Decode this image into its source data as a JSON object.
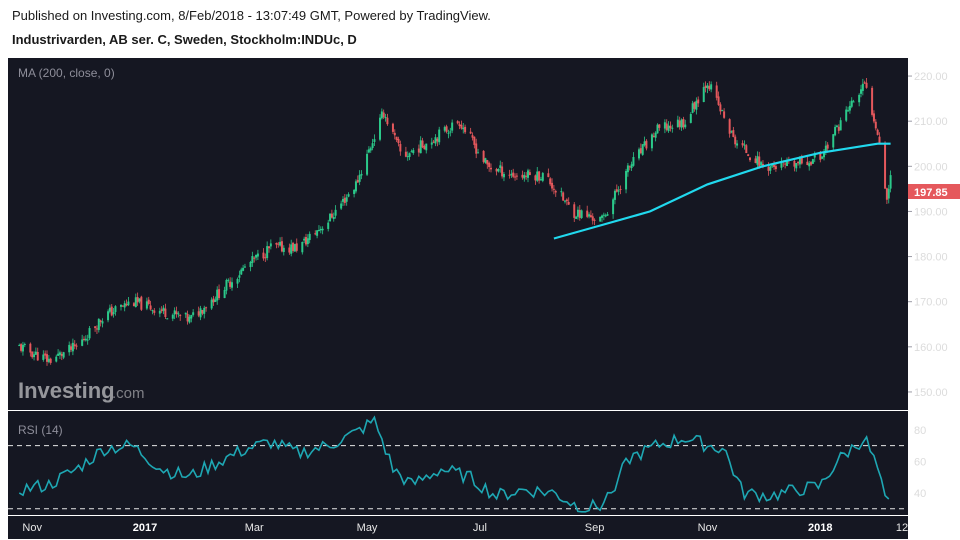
{
  "header": {
    "published": "Published on Investing.com, 8/Feb/2018 - 13:07:49 GMT, Powered by TradingView.",
    "title": "Industrivarden, AB ser. C, Sweden, Stockholm:INDUc, D"
  },
  "watermark": {
    "brand": "Investing",
    "suffix": ".com"
  },
  "colors": {
    "background": "#151722",
    "up": "#2bc98a",
    "down": "#e5585c",
    "ma": "#21d9ee",
    "rsi": "#1ea7b3",
    "last_price_bg": "#e5585c"
  },
  "chart_data": [
    {
      "type": "candlestick",
      "indicator_label": "MA (200, close, 0)",
      "y_ticks": [
        "220.00",
        "210.00",
        "200.00",
        "190.00",
        "180.00",
        "170.00",
        "160.00",
        "150.00"
      ],
      "ylim": [
        146,
        224
      ],
      "last_price": "197.85",
      "x_ticks": [
        "Nov",
        "2017",
        "Mar",
        "May",
        "Jul",
        "Sep",
        "Nov",
        "2018",
        "12"
      ],
      "series": [
        {
          "name": "close",
          "points": [
            [
              "2016-10-25",
              160
            ],
            [
              "2016-11-10",
              157
            ],
            [
              "2016-11-25",
              160
            ],
            [
              "2016-12-10",
              167
            ],
            [
              "2016-12-25",
              170
            ],
            [
              "2017-01-10",
              168
            ],
            [
              "2017-01-25",
              166
            ],
            [
              "2017-02-10",
              172
            ],
            [
              "2017-02-25",
              178
            ],
            [
              "2017-03-10",
              182
            ],
            [
              "2017-03-25",
              182
            ],
            [
              "2017-04-10",
              188
            ],
            [
              "2017-04-25",
              196
            ],
            [
              "2017-05-10",
              212
            ],
            [
              "2017-05-20",
              202
            ],
            [
              "2017-06-05",
              206
            ],
            [
              "2017-06-20",
              210
            ],
            [
              "2017-07-05",
              200
            ],
            [
              "2017-07-20",
              198
            ],
            [
              "2017-08-05",
              198
            ],
            [
              "2017-08-20",
              190
            ],
            [
              "2017-09-05",
              188
            ],
            [
              "2017-09-20",
              200
            ],
            [
              "2017-10-05",
              208
            ],
            [
              "2017-10-20",
              210
            ],
            [
              "2017-11-01",
              219
            ],
            [
              "2017-11-15",
              206
            ],
            [
              "2017-12-01",
              200
            ],
            [
              "2017-12-15",
              200
            ],
            [
              "2018-01-01",
              202
            ],
            [
              "2018-01-15",
              212
            ],
            [
              "2018-01-25",
              218
            ],
            [
              "2018-02-01",
              208
            ],
            [
              "2018-02-06",
              193
            ],
            [
              "2018-02-08",
              197.85
            ]
          ]
        },
        {
          "name": "MA (200, close, 0)",
          "points": [
            [
              "2017-08-10",
              184
            ],
            [
              "2017-09-05",
              187
            ],
            [
              "2017-10-01",
              190
            ],
            [
              "2017-11-01",
              196
            ],
            [
              "2017-12-01",
              200
            ],
            [
              "2018-01-01",
              203
            ],
            [
              "2018-02-01",
              205
            ],
            [
              "2018-02-08",
              205
            ]
          ]
        }
      ]
    },
    {
      "type": "line",
      "indicator_label": "RSI (14)",
      "y_ticks": [
        "80",
        "60",
        "40"
      ],
      "ylim": [
        26,
        92
      ],
      "bands": [
        70,
        30
      ],
      "series": [
        {
          "name": "RSI (14)",
          "points": [
            [
              "2016-10-25",
              42
            ],
            [
              "2016-11-10",
              45
            ],
            [
              "2016-11-25",
              55
            ],
            [
              "2016-12-10",
              68
            ],
            [
              "2016-12-25",
              70
            ],
            [
              "2017-01-10",
              55
            ],
            [
              "2017-01-25",
              50
            ],
            [
              "2017-02-10",
              60
            ],
            [
              "2017-02-25",
              68
            ],
            [
              "2017-03-10",
              72
            ],
            [
              "2017-03-25",
              65
            ],
            [
              "2017-04-10",
              70
            ],
            [
              "2017-04-25",
              78
            ],
            [
              "2017-05-05",
              86
            ],
            [
              "2017-05-15",
              55
            ],
            [
              "2017-05-25",
              45
            ],
            [
              "2017-06-10",
              55
            ],
            [
              "2017-06-25",
              50
            ],
            [
              "2017-07-10",
              38
            ],
            [
              "2017-07-25",
              42
            ],
            [
              "2017-08-10",
              40
            ],
            [
              "2017-08-25",
              30
            ],
            [
              "2017-09-05",
              32
            ],
            [
              "2017-09-20",
              62
            ],
            [
              "2017-10-05",
              70
            ],
            [
              "2017-10-20",
              75
            ],
            [
              "2017-11-01",
              70
            ],
            [
              "2017-11-10",
              68
            ],
            [
              "2017-11-20",
              40
            ],
            [
              "2017-12-05",
              38
            ],
            [
              "2017-12-20",
              42
            ],
            [
              "2018-01-01",
              44
            ],
            [
              "2018-01-10",
              60
            ],
            [
              "2018-01-25",
              75
            ],
            [
              "2018-02-01",
              55
            ],
            [
              "2018-02-06",
              30
            ],
            [
              "2018-02-08",
              35
            ]
          ]
        }
      ]
    }
  ]
}
